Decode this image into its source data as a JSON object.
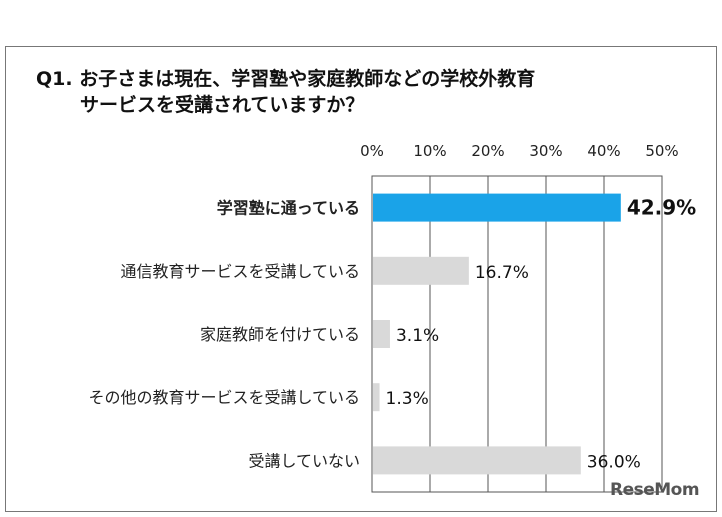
{
  "question": {
    "line1": "Q1. お子さまは現在、学習塾や家庭教師などの学校外教育",
    "line2": "サービスを受講されていますか？"
  },
  "watermark": "ReseMom",
  "chart_data": {
    "type": "bar",
    "orientation": "horizontal",
    "categories": [
      "学習塾に通っている",
      "通信教育サービスを受講している",
      "家庭教師を付けている",
      "その他の教育サービスを受講している",
      "受講していない"
    ],
    "values": [
      42.9,
      16.7,
      3.1,
      1.3,
      36.0
    ],
    "value_labels": [
      "42.9%",
      "16.7%",
      "3.1%",
      "1.3%",
      "36.0%"
    ],
    "x_ticks": [
      "0%",
      "10%",
      "20%",
      "30%",
      "40%",
      "50%"
    ],
    "xlim": [
      0,
      50
    ],
    "grid": true,
    "colors": {
      "highlight": "#1aa3e8",
      "default": "#d9d9d9"
    },
    "highlight_index": 0
  }
}
